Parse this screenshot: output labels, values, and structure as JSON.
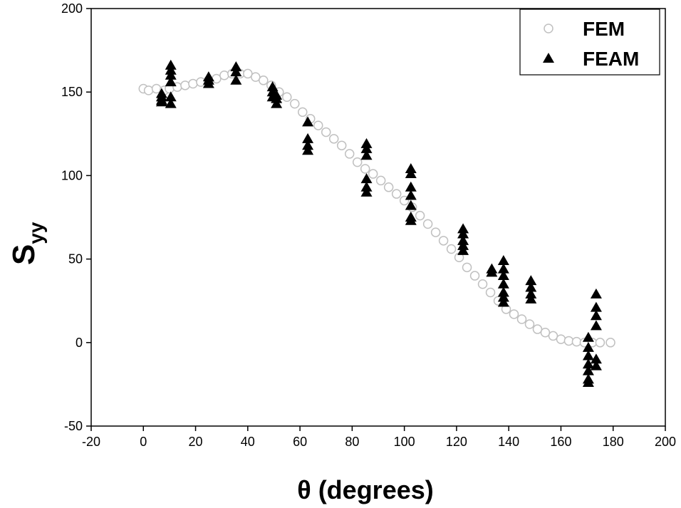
{
  "chart_data": {
    "type": "scatter",
    "xlabel": "θ (degrees)",
    "ylabel": "S",
    "ylabel_subscript": "yy",
    "xlim": [
      -20,
      200
    ],
    "ylim": [
      -50,
      200
    ],
    "xticks": [
      -20,
      0,
      20,
      40,
      60,
      80,
      100,
      120,
      140,
      160,
      180,
      200
    ],
    "yticks": [
      -50,
      0,
      50,
      100,
      150,
      200
    ],
    "legend": "upper right",
    "series": [
      {
        "name": "FEM",
        "color": "#c0c0c0",
        "marker": "circle",
        "x": [
          0,
          2,
          5,
          8,
          10,
          13,
          16,
          19,
          22,
          25,
          28,
          31,
          34,
          37,
          40,
          43,
          46,
          49,
          52,
          55,
          58,
          61,
          64,
          67,
          70,
          73,
          76,
          79,
          82,
          85,
          88,
          91,
          94,
          97,
          100,
          103,
          106,
          109,
          112,
          115,
          118,
          121,
          124,
          127,
          130,
          133,
          136,
          139,
          142,
          145,
          148,
          151,
          154,
          157,
          160,
          163,
          166,
          169,
          172,
          175,
          179
        ],
        "values": [
          152,
          151,
          152,
          151,
          152,
          153,
          154,
          155,
          156,
          157,
          158,
          160,
          161,
          161,
          161,
          159,
          157,
          154,
          150,
          147,
          143,
          138,
          134,
          130,
          126,
          122,
          118,
          113,
          108,
          104,
          101,
          97,
          93,
          89,
          85,
          81,
          76,
          71,
          66,
          61,
          56,
          51,
          45,
          40,
          35,
          30,
          25,
          20,
          17,
          14,
          11,
          8,
          6,
          4,
          2,
          1,
          0.5,
          0,
          0,
          0,
          0
        ]
      },
      {
        "name": "FEAM",
        "color": "#000000",
        "marker": "triangle",
        "x": [
          7,
          7,
          7,
          7,
          10.5,
          10.5,
          10.5,
          10.5,
          10.5,
          10.5,
          25,
          25,
          25,
          35.5,
          35.5,
          35.5,
          49.5,
          49.5,
          49.5,
          51,
          51,
          51,
          63,
          63,
          63,
          63,
          85.5,
          85.5,
          85.5,
          85.5,
          85.5,
          85.5,
          102.5,
          102.5,
          102.5,
          102.5,
          102.5,
          102.5,
          102.5,
          122.5,
          122.5,
          122.5,
          122.5,
          122.5,
          133.5,
          133.5,
          138,
          138,
          138,
          138,
          138,
          138,
          138,
          148.5,
          148.5,
          148.5,
          148.5,
          170.5,
          170.5,
          170.5,
          170.5,
          170.5,
          170.5,
          170.5,
          173.5,
          173.5,
          173.5,
          173.5,
          173.5,
          173.5
        ],
        "values": [
          149,
          147,
          145,
          144,
          166,
          163,
          160,
          156,
          147,
          143,
          159,
          157,
          155,
          165,
          162,
          157,
          153,
          150,
          147,
          148,
          146,
          143,
          132,
          122,
          118,
          115,
          119,
          116,
          112,
          98,
          93,
          90,
          104,
          101,
          93,
          88,
          82,
          75,
          73,
          68,
          65,
          61,
          58,
          55,
          44,
          42,
          49,
          44,
          40,
          35,
          30,
          27,
          24,
          37,
          33,
          29,
          26,
          3,
          -3,
          -8,
          -13,
          -17,
          -22,
          -24,
          29,
          21,
          16,
          10,
          -10,
          -14
        ]
      }
    ]
  }
}
